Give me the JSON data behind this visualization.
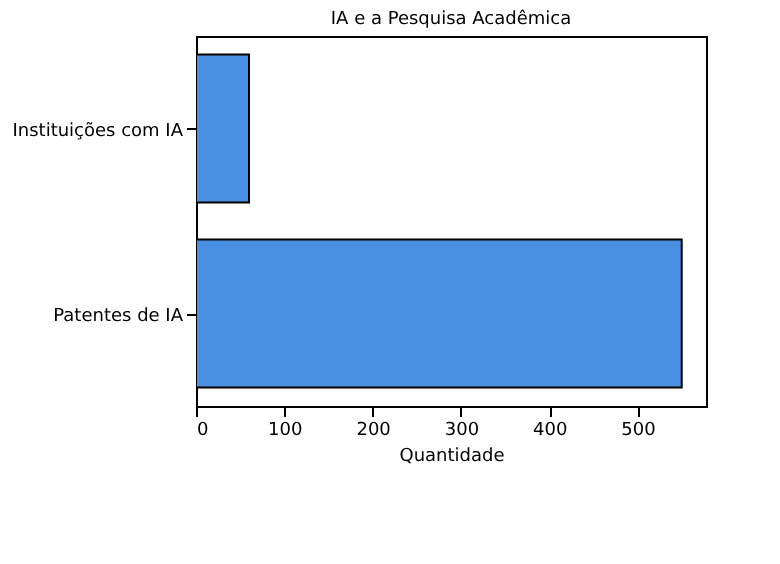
{
  "chart_data": {
    "type": "bar",
    "orientation": "horizontal",
    "title": "IA e a Pesquisa Acadêmica",
    "xlabel": "Quantidade",
    "categories": [
      "Instituições com IA",
      "Patentes de IA"
    ],
    "series": [
      {
        "color": "#4a90e2",
        "values": [
          60,
          550
        ]
      }
    ],
    "xlim": [
      0,
      577.5
    ],
    "xticks": [
      0,
      100,
      200,
      300,
      400,
      500
    ],
    "grid": false
  }
}
